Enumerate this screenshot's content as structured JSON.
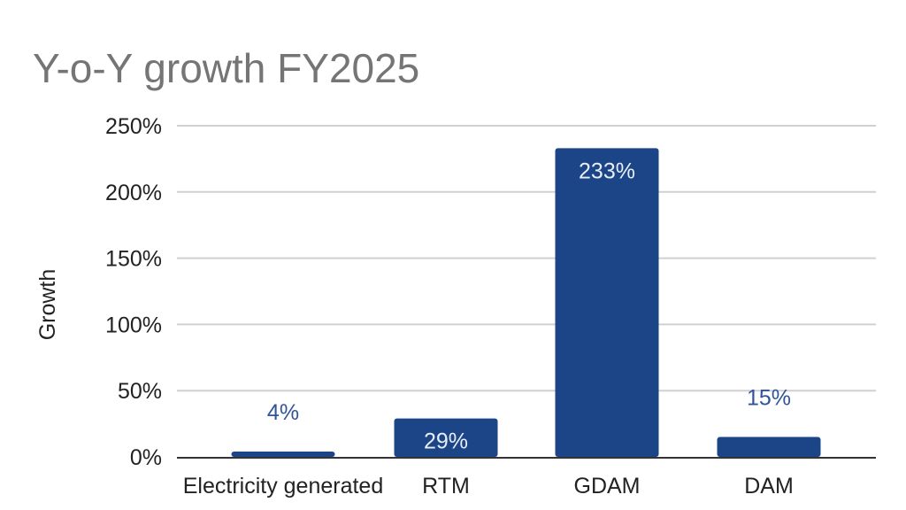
{
  "colors": {
    "bar": "#1c4587",
    "title": "#757575",
    "gridline": "#d0d0d0",
    "axis": "#333333",
    "label_inside": "#e8eef8",
    "label_outside": "#2f5597"
  },
  "chart_data": {
    "type": "bar",
    "title": "Y-o-Y growth FY2025",
    "xlabel": "",
    "ylabel": "Growth",
    "categories": [
      "Electricity generated",
      "RTM",
      "GDAM",
      "DAM"
    ],
    "values": [
      4,
      29,
      233,
      15
    ],
    "value_labels": [
      "4%",
      "29%",
      "233%",
      "15%"
    ],
    "ylim": [
      0,
      250
    ],
    "yticks": [
      0,
      50,
      100,
      150,
      200,
      250
    ],
    "ytick_labels": [
      "0%",
      "50%",
      "100%",
      "150%",
      "200%",
      "250%"
    ],
    "grid": true,
    "legend": "none"
  }
}
